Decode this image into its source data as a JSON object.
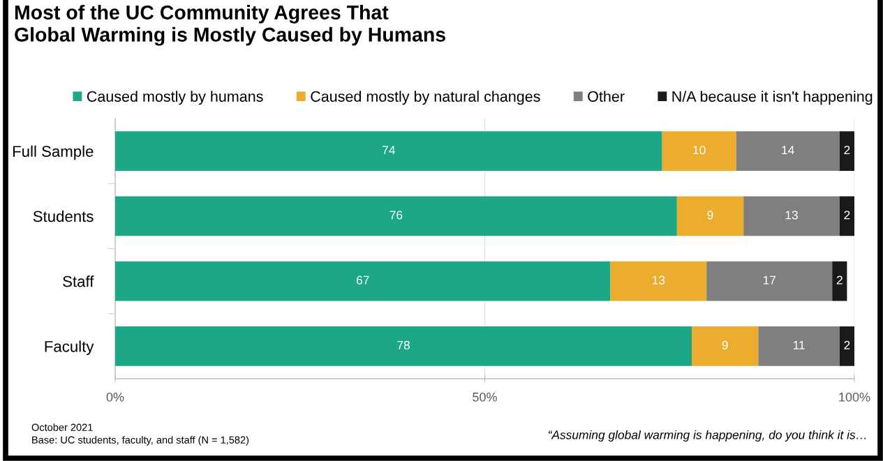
{
  "chart_data": {
    "type": "bar",
    "orientation": "horizontal",
    "stacked": true,
    "title": "Most of the UC Community Agrees That\nGlobal Warming is Mostly Caused by Humans",
    "categories": [
      "Full Sample",
      "Students",
      "Staff",
      "Faculty"
    ],
    "series": [
      {
        "name": "Caused mostly by humans",
        "color": "#1ca886",
        "values": [
          74,
          76,
          67,
          78
        ]
      },
      {
        "name": "Caused mostly by natural changes",
        "color": "#ecac2d",
        "values": [
          10,
          9,
          13,
          9
        ]
      },
      {
        "name": "Other",
        "color": "#7f7f7f",
        "values": [
          14,
          13,
          17,
          11
        ]
      },
      {
        "name": "N/A because it isn't happening",
        "color": "#1a1a1a",
        "values": [
          2,
          2,
          2,
          2
        ]
      }
    ],
    "xlim": [
      0,
      100
    ],
    "xticks": [
      {
        "value": 0,
        "label": "0%"
      },
      {
        "value": 50,
        "label": "50%"
      },
      {
        "value": 100,
        "label": "100%"
      }
    ],
    "grid": "x",
    "legend": "top",
    "data_labels": true,
    "annotations": [
      "October 2021",
      "Base: UC students, faculty, and staff (N = 1,582)",
      "“Assuming global warming is happening, do you think it is…"
    ]
  }
}
